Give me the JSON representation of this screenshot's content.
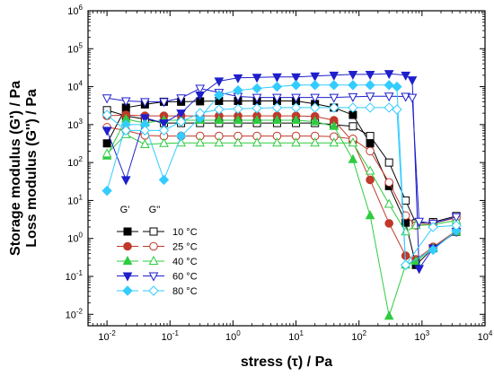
{
  "chart_data": {
    "type": "line",
    "xlabel": "stress (τ) / Pa",
    "ylabel_lines": [
      "Storage modulus (G') / Pa",
      "Loss modulus (G'') / Pa"
    ],
    "xscale": "log",
    "yscale": "log",
    "xlim": [
      0.005,
      10000
    ],
    "ylim": [
      0.005,
      1000000
    ],
    "x_tick_labels": [
      {
        "value": 0.01,
        "base": "10",
        "exp": "-2"
      },
      {
        "value": 0.1,
        "base": "10",
        "exp": "-1"
      },
      {
        "value": 1,
        "base": "10",
        "exp": "0"
      },
      {
        "value": 10,
        "base": "10",
        "exp": "1"
      },
      {
        "value": 100,
        "base": "10",
        "exp": "2"
      },
      {
        "value": 1000,
        "base": "10",
        "exp": "3"
      },
      {
        "value": 10000,
        "base": "10",
        "exp": "4"
      }
    ],
    "y_tick_labels": [
      {
        "value": 0.01,
        "base": "10",
        "exp": "-2"
      },
      {
        "value": 0.1,
        "base": "10",
        "exp": "-1"
      },
      {
        "value": 1,
        "base": "10",
        "exp": "0"
      },
      {
        "value": 10,
        "base": "10",
        "exp": "1"
      },
      {
        "value": 100,
        "base": "10",
        "exp": "2"
      },
      {
        "value": 1000,
        "base": "10",
        "exp": "3"
      },
      {
        "value": 10000,
        "base": "10",
        "exp": "4"
      },
      {
        "value": 100000,
        "base": "10",
        "exp": "5"
      },
      {
        "value": 1000000,
        "base": "10",
        "exp": "6"
      }
    ],
    "grid": false,
    "legend": {
      "placement": "lower-left",
      "header_filled": "G'",
      "header_open": "G''",
      "entries": [
        "10 °C",
        "25 °C",
        "40 °C",
        "60 °C",
        "80 °C"
      ]
    },
    "series": [
      {
        "temperature": "10 °C",
        "modulus": "G'",
        "color": "#000000",
        "marker": "square",
        "filled": true,
        "x": [
          0.01,
          0.02,
          0.04,
          0.08,
          0.15,
          0.3,
          0.6,
          1.2,
          2.4,
          5,
          10,
          20,
          40,
          80,
          150,
          300,
          550,
          800,
          1500,
          3500
        ],
        "y": [
          320,
          2800,
          3400,
          4000,
          4000,
          4100,
          4200,
          4200,
          4200,
          4200,
          4200,
          3500,
          2800,
          1800,
          320,
          24,
          2.6,
          0.2,
          0.55,
          1.5
        ]
      },
      {
        "temperature": "10 °C",
        "modulus": "G''",
        "color": "#000000",
        "marker": "square",
        "filled": false,
        "x": [
          0.01,
          0.02,
          0.04,
          0.08,
          0.15,
          0.3,
          0.6,
          1.2,
          2.4,
          5,
          10,
          20,
          40,
          80,
          150,
          300,
          550,
          800,
          1500,
          3500
        ],
        "y": [
          2400,
          1700,
          1400,
          1100,
          1100,
          1100,
          1100,
          1100,
          1100,
          1100,
          1100,
          1100,
          1000,
          900,
          500,
          100,
          10,
          2.5,
          2.7,
          3.9
        ]
      },
      {
        "temperature": "25 °C",
        "modulus": "G'",
        "color": "#c0392b",
        "marker": "circle",
        "filled": true,
        "x": [
          0.01,
          0.02,
          0.04,
          0.08,
          0.15,
          0.3,
          0.6,
          1.2,
          2.4,
          5,
          10,
          20,
          40,
          80,
          150,
          300,
          550,
          800,
          1500,
          3500
        ],
        "y": [
          1700,
          1800,
          1700,
          1700,
          1700,
          1700,
          1700,
          1700,
          1700,
          1700,
          1700,
          1650,
          1300,
          350,
          35,
          2.5,
          0.35,
          0.28,
          0.6,
          1.6
        ]
      },
      {
        "temperature": "25 °C",
        "modulus": "G''",
        "color": "#c0392b",
        "marker": "circle",
        "filled": false,
        "x": [
          0.01,
          0.02,
          0.04,
          0.08,
          0.15,
          0.3,
          0.6,
          1.2,
          2.4,
          5,
          10,
          20,
          40,
          80,
          150,
          300,
          550,
          800,
          1500,
          3500
        ],
        "y": [
          850,
          700,
          520,
          500,
          500,
          500,
          500,
          500,
          500,
          500,
          500,
          500,
          480,
          420,
          200,
          30,
          4,
          2.2,
          2.5,
          3.5
        ]
      },
      {
        "temperature": "40 °C",
        "modulus": "G'",
        "color": "#2ecc40",
        "marker": "triangle-up",
        "filled": true,
        "x": [
          0.01,
          0.02,
          0.04,
          0.08,
          0.15,
          0.3,
          0.6,
          1.2,
          2.4,
          5,
          10,
          20,
          40,
          80,
          150,
          300,
          550,
          800,
          1500,
          3500
        ],
        "y": [
          150,
          1400,
          1100,
          1300,
          1300,
          1300,
          1300,
          1300,
          1300,
          1300,
          1300,
          1200,
          900,
          120,
          4,
          0.009,
          0.2,
          0.25,
          0.55,
          1.5
        ]
      },
      {
        "temperature": "40 °C",
        "modulus": "G''",
        "color": "#2ecc40",
        "marker": "triangle-up",
        "filled": false,
        "x": [
          0.01,
          0.02,
          0.04,
          0.08,
          0.15,
          0.3,
          0.6,
          1.2,
          2.4,
          5,
          10,
          20,
          40,
          80,
          150,
          300,
          550,
          800,
          1500,
          3500
        ],
        "y": [
          170,
          550,
          300,
          320,
          330,
          330,
          330,
          330,
          330,
          330,
          330,
          330,
          330,
          330,
          60,
          8,
          1.5,
          2.2,
          2.3,
          3.0
        ]
      },
      {
        "temperature": "60 °C",
        "modulus": "G'",
        "color": "#1f1fcc",
        "marker": "triangle-down",
        "filled": true,
        "x": [
          0.01,
          0.02,
          0.04,
          0.08,
          0.15,
          0.3,
          0.6,
          1.2,
          2.4,
          5,
          10,
          20,
          40,
          80,
          150,
          300,
          550,
          700,
          900,
          1500,
          3500
        ],
        "y": [
          700,
          35,
          1500,
          1100,
          2000,
          6000,
          14000,
          17000,
          17500,
          18000,
          18000,
          19000,
          20000,
          21000,
          21000,
          22000,
          20000,
          15000,
          0.16,
          0.55,
          1.5
        ]
      },
      {
        "temperature": "60 °C",
        "modulus": "G''",
        "color": "#1f1fcc",
        "marker": "triangle-down",
        "filled": false,
        "x": [
          0.01,
          0.02,
          0.04,
          0.08,
          0.15,
          0.3,
          0.6,
          1.2,
          2.4,
          5,
          10,
          20,
          40,
          80,
          150,
          300,
          550,
          700,
          900,
          1500,
          3500
        ],
        "y": [
          5000,
          4200,
          4000,
          4000,
          5000,
          9000,
          7000,
          5500,
          5200,
          5200,
          5200,
          5200,
          5200,
          5400,
          5600,
          5600,
          5500,
          5200,
          2.8,
          2.5,
          3.7
        ]
      },
      {
        "temperature": "80 °C",
        "modulus": "G'",
        "color": "#33ccff",
        "marker": "diamond",
        "filled": true,
        "x": [
          0.01,
          0.02,
          0.04,
          0.08,
          0.15,
          0.3,
          0.6,
          1.2,
          2.4,
          5,
          10,
          20,
          40,
          80,
          150,
          300,
          400,
          550,
          1500,
          3500
        ],
        "y": [
          18,
          1000,
          1000,
          35,
          500,
          1500,
          6000,
          8000,
          9000,
          10000,
          11000,
          11000,
          11000,
          11000,
          11000,
          11000,
          10000,
          0.2,
          0.5,
          1.6
        ]
      },
      {
        "temperature": "80 °C",
        "modulus": "G''",
        "color": "#33ccff",
        "marker": "diamond",
        "filled": false,
        "x": [
          0.01,
          0.02,
          0.04,
          0.08,
          0.15,
          0.3,
          0.6,
          1.2,
          2.4,
          5,
          10,
          20,
          40,
          80,
          150,
          300,
          400,
          550,
          1500,
          3500
        ],
        "y": [
          1800,
          700,
          700,
          700,
          1200,
          2000,
          2500,
          2600,
          2700,
          2800,
          2800,
          2800,
          2800,
          2800,
          2800,
          2800,
          2500,
          0.2,
          2.0,
          2.2
        ]
      }
    ]
  }
}
